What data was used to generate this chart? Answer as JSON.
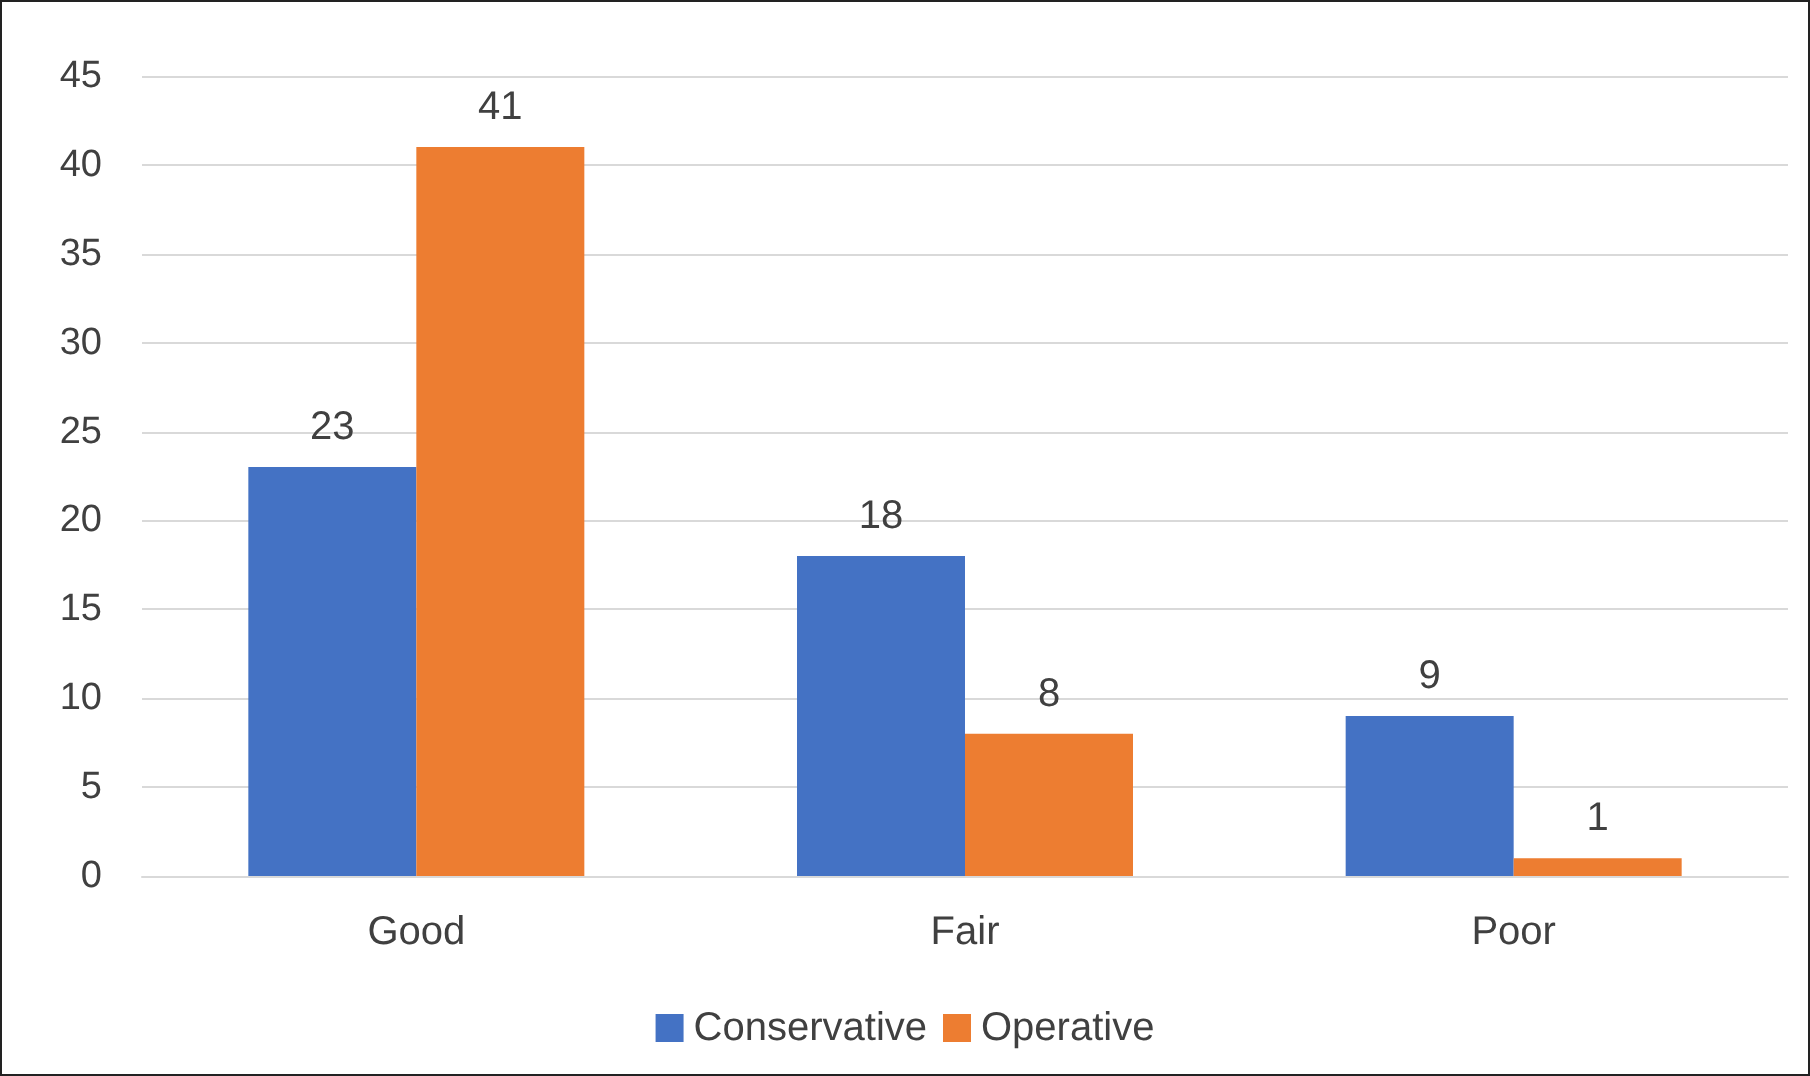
{
  "chart_data": {
    "type": "bar",
    "categories": [
      "Good",
      "Fair",
      "Poor"
    ],
    "series": [
      {
        "name": "Conservative",
        "color": "#4472c4",
        "values": [
          23,
          18,
          9
        ]
      },
      {
        "name": "Operative",
        "color": "#ed7d31",
        "values": [
          41,
          8,
          1
        ]
      }
    ],
    "ylim": [
      0,
      45
    ],
    "yticks": [
      0,
      5,
      10,
      15,
      20,
      25,
      30,
      35,
      40,
      45
    ],
    "grid": "y",
    "legend": "bottom",
    "data_labels": true
  }
}
